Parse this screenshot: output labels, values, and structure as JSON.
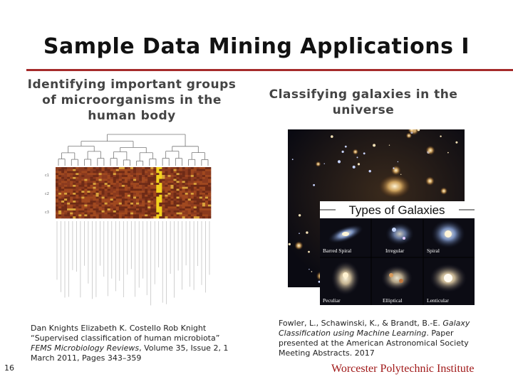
{
  "slide": {
    "title": "Sample Data Mining Applications I",
    "number": "16",
    "footer": "Worcester Polytechnic Institute"
  },
  "left": {
    "caption": "Identifying important groups of microorganisms in the human body",
    "figure_row_labels": [
      "c1",
      "c2",
      "c3"
    ],
    "reference": {
      "authors": "Dan Knights Elizabeth K. Costello Rob Knight",
      "title": "“Supervised classification of human microbiota”",
      "journal": "FEMS Microbiology Reviews",
      "details": ", Volume 35, Issue 2, 1 March 2011, Pages 343–359"
    }
  },
  "right": {
    "caption": "Classifying galaxies in the universe",
    "inset_title": "Types of Galaxies",
    "galaxy_labels": [
      "Barred Spiral",
      "Irregular",
      "Spiral",
      "Peculiar",
      "Elliptical",
      "Lenticular"
    ],
    "reference": {
      "authors": "Fowler, L., Schawinski, K., & Brandt, B.-E.",
      "work": "Galaxy Classification using Machine Learning",
      "details": ". Paper presented at the American Astronomical Society Meeting Abstracts. 2017"
    }
  },
  "colors": {
    "accent_rule": "#a52a2a",
    "footer_text": "#a01818",
    "heatmap_low": "#8b3a1e",
    "heatmap_high": "#f2d21c"
  }
}
